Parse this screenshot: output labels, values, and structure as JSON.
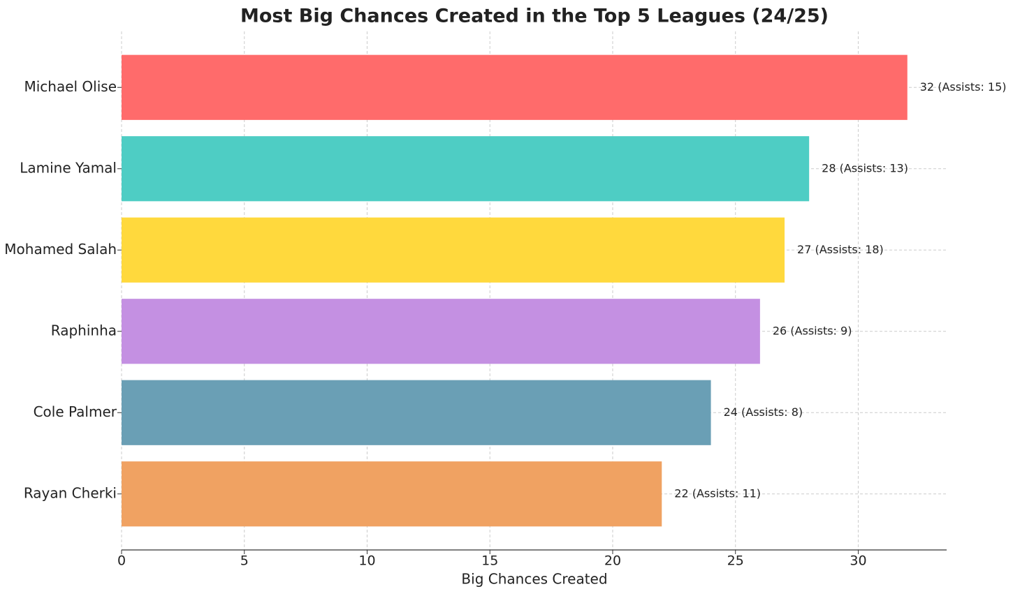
{
  "chart_data": {
    "type": "barh",
    "title": "Most Big Chances Created in the Top 5 Leagues (24/25)",
    "xlabel": "Big Chances Created",
    "categories": [
      "Michael Olise",
      "Lamine Yamal",
      "Mohamed Salah",
      "Raphinha",
      "Cole Palmer",
      "Rayan Cherki"
    ],
    "values": [
      32,
      28,
      27,
      26,
      24,
      22
    ],
    "value_labels": [
      "32 (Assists: 15)",
      "28 (Assists: 13)",
      "27 (Assists: 18)",
      "26 (Assists: 9)",
      "24 (Assists: 8)",
      "22 (Assists: 11)"
    ],
    "colors": [
      "#ff6b6b",
      "#4ecdc4",
      "#ffd93d",
      "#c490e2",
      "#6a9fb5",
      "#f0a262"
    ],
    "xlim": [
      0,
      33.6
    ],
    "xticks": [
      0,
      5,
      10,
      15,
      20,
      25,
      30
    ],
    "grid": true
  }
}
